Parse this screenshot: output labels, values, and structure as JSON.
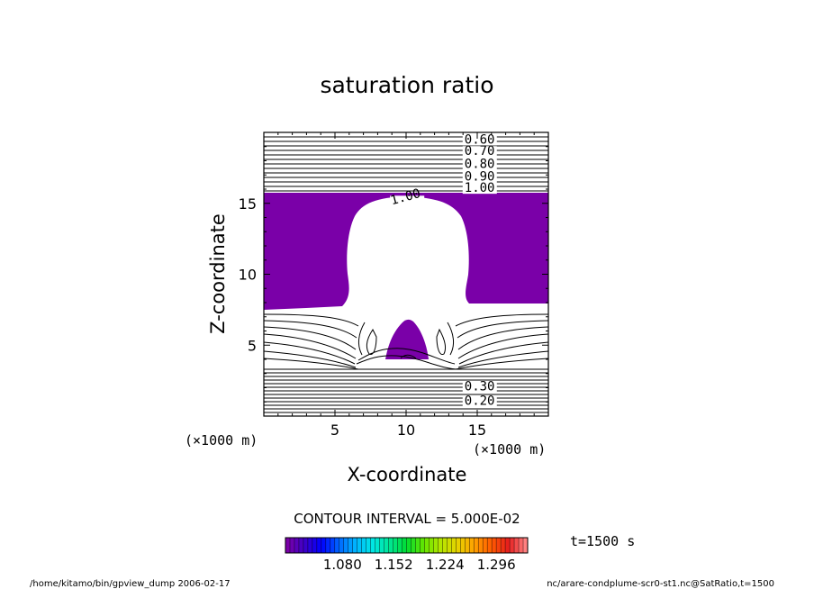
{
  "chart_data": {
    "type": "contour",
    "title": "saturation ratio",
    "xlabel": "X-coordinate",
    "ylabel": "Z-coordinate",
    "x_unit": "(×1000 m)",
    "z_unit": "(×1000 m)",
    "xlim": [
      0,
      20
    ],
    "ylim": [
      0,
      20
    ],
    "x_ticks": [
      5,
      10,
      15
    ],
    "y_ticks": [
      5,
      10,
      15
    ],
    "contour_labels": [
      {
        "text": "0.60",
        "x": 14.1,
        "z": 19.2
      },
      {
        "text": "0.70",
        "x": 14.1,
        "z": 18.4
      },
      {
        "text": "0.80",
        "x": 14.1,
        "z": 17.5
      },
      {
        "text": "0.90",
        "x": 14.1,
        "z": 16.6
      },
      {
        "text": "1.00",
        "x": 14.1,
        "z": 15.8
      },
      {
        "text": "1.00",
        "x": 9.0,
        "z": 14.9
      },
      {
        "text": "0.30",
        "x": 14.1,
        "z": 1.8
      },
      {
        "text": "0.20",
        "x": 14.1,
        "z": 0.8
      }
    ],
    "filled_color": "#7a00a8",
    "contour_interval_label": "CONTOUR INTERVAL = 5.000E-02",
    "colorbar": {
      "tick_labels": [
        "1.080",
        "1.152",
        "1.224",
        "1.296"
      ],
      "tick_values": [
        1.08,
        1.152,
        1.224,
        1.296
      ],
      "range": [
        1.0,
        1.34
      ],
      "colors": [
        "#7a00a8",
        "#3c00c8",
        "#0000ff",
        "#0064ff",
        "#00b4ff",
        "#00e6e6",
        "#00e696",
        "#00dc32",
        "#64e600",
        "#b4e600",
        "#e6d200",
        "#ffa000",
        "#ff5a00",
        "#e61e1e",
        "#ff8080"
      ]
    }
  },
  "time_label": "t=1500 s",
  "footer": {
    "left": "/home/kitamo/bin/gpview_dump  2006-02-17",
    "right": "nc/arare-condplume-scr0-st1.nc@SatRatio,t=1500"
  }
}
